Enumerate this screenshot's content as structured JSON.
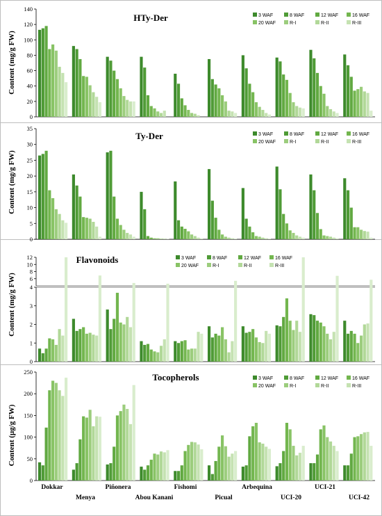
{
  "chart_data": [
    {
      "type": "bar",
      "title": "HTy-Der",
      "ylabel": "Content (mg/g FW)",
      "ylim": [
        0,
        140
      ],
      "yticks": [
        0,
        20,
        40,
        60,
        80,
        100,
        120,
        140
      ],
      "categories": [
        "Dokkar",
        "Menya",
        "Piñonera",
        "Abou Kanani",
        "Fishomi",
        "Picual",
        "Arbequina",
        "UCI-20",
        "UCI-21",
        "UCI-42"
      ],
      "series": [
        {
          "name": "3 WAF",
          "values": [
            113,
            92,
            78,
            78,
            56,
            75,
            80,
            77,
            87,
            81
          ]
        },
        {
          "name": "8 WAF",
          "values": [
            115,
            88,
            73,
            64,
            43,
            49,
            63,
            72,
            76,
            67
          ]
        },
        {
          "name": "12 WAF",
          "values": [
            118,
            75,
            60,
            28,
            24,
            42,
            43,
            55,
            57,
            52
          ]
        },
        {
          "name": "16 WAF",
          "values": [
            88,
            53,
            49,
            14,
            15,
            37,
            32,
            48,
            40,
            34
          ]
        },
        {
          "name": "20 WAF",
          "values": [
            94,
            52,
            37,
            11,
            9,
            28,
            19,
            31,
            30,
            36
          ]
        },
        {
          "name": "R-I",
          "values": [
            86,
            41,
            27,
            7,
            5,
            20,
            13,
            19,
            14,
            39
          ]
        },
        {
          "name": "R-II",
          "values": [
            65,
            32,
            22,
            5,
            4,
            8,
            9,
            14,
            10,
            33
          ]
        },
        {
          "name": "R-III",
          "values": [
            57,
            26,
            20,
            8,
            2,
            7,
            5,
            12,
            7,
            31
          ]
        },
        {
          "name": "",
          "values": [
            45,
            19,
            20,
            0,
            0,
            5,
            3,
            11,
            5,
            8
          ]
        }
      ],
      "legend": [
        "3 WAF",
        "8 WAF",
        "12 WAF",
        "16 WAF",
        "20 WAF",
        "R-I",
        "R-II",
        "R-III"
      ]
    },
    {
      "type": "bar",
      "title": "Ty-Der",
      "ylabel": "Content (mg/g FW)",
      "ylim": [
        0,
        35
      ],
      "yticks": [
        0,
        5,
        10,
        15,
        20,
        25,
        30,
        35
      ],
      "categories": [
        "Dokkar",
        "Menya",
        "Piñonera",
        "Abou Kanani",
        "Fishomi",
        "Picual",
        "Arbequina",
        "UCI-20",
        "UCI-21",
        "UCI-42"
      ],
      "series": [
        {
          "name": "3 WAF",
          "values": [
            26.5,
            20.5,
            27.5,
            15,
            18.3,
            22.2,
            16.2,
            23,
            20.5,
            19.3
          ]
        },
        {
          "name": "8 WAF",
          "values": [
            27,
            17,
            28,
            9.5,
            6,
            12.2,
            6.5,
            15.8,
            15.5,
            15.5
          ]
        },
        {
          "name": "12 WAF",
          "values": [
            28,
            13.5,
            13.5,
            1,
            4,
            6.8,
            4,
            8,
            8.3,
            10
          ]
        },
        {
          "name": "16 WAF",
          "values": [
            15.5,
            7,
            6.5,
            0.5,
            3.3,
            3,
            2.2,
            5,
            3.2,
            3.8
          ]
        },
        {
          "name": "20 WAF",
          "values": [
            13,
            6.8,
            4.5,
            0.3,
            2.5,
            1.5,
            1,
            2.8,
            1.2,
            3.8
          ]
        },
        {
          "name": "R-I",
          "values": [
            9.5,
            6.5,
            3,
            0.3,
            1.5,
            0.8,
            0.8,
            2,
            1,
            3
          ]
        },
        {
          "name": "R-II",
          "values": [
            8,
            5.5,
            2,
            0.2,
            1,
            0.5,
            0.5,
            1.2,
            0.8,
            2.6
          ]
        },
        {
          "name": "R-III",
          "values": [
            6,
            4,
            1.5,
            0.2,
            0.5,
            0.3,
            0.3,
            0.8,
            0.5,
            2.4
          ]
        },
        {
          "name": "",
          "values": [
            5.2,
            0.8,
            0.8,
            0.1,
            0.3,
            0.2,
            0.2,
            0.5,
            0.3,
            0.5
          ]
        }
      ],
      "legend": [
        "3 WAF",
        "8 WAF",
        "12 WAF",
        "16 WAF",
        "20 WAF",
        "R-I",
        "R-II",
        "R-III"
      ]
    },
    {
      "type": "bar",
      "title": "Flavonoids",
      "ylabel": "Content (mg/g FW)",
      "ylim": [
        0,
        12
      ],
      "yticks_lower": [
        0,
        1,
        2,
        3
      ],
      "yticks_upper": [
        4,
        6,
        8,
        10,
        12
      ],
      "axis_break": [
        4,
        4.5
      ],
      "categories": [
        "Dokkar",
        "Menya",
        "Piñonera",
        "Abou Kanani",
        "Fishomi",
        "Picual",
        "Arbequina",
        "UCI-20",
        "UCI-21",
        "UCI-42"
      ],
      "series": [
        {
          "name": "3 WAF",
          "values": [
            0.7,
            2.3,
            2.8,
            1.1,
            1.1,
            1.9,
            1.9,
            1.95,
            2.55,
            2.2
          ]
        },
        {
          "name": "8 WAF",
          "values": [
            0.45,
            1.65,
            1.75,
            0.9,
            1.0,
            1.3,
            1.55,
            1.9,
            2.5,
            1.5
          ]
        },
        {
          "name": "12 WAF",
          "values": [
            0.7,
            1.75,
            2.3,
            0.95,
            1.1,
            1.5,
            1.6,
            2.4,
            2.2,
            1.65
          ]
        },
        {
          "name": "16 WAF",
          "values": [
            1.25,
            1.85,
            3.7,
            0.65,
            1.15,
            1.4,
            1.75,
            3.4,
            2.1,
            1.5
          ]
        },
        {
          "name": "20 WAF",
          "values": [
            1.2,
            1.5,
            2.1,
            0.55,
            0.65,
            1.85,
            1.3,
            2.2,
            1.9,
            1.0
          ]
        },
        {
          "name": "R-I",
          "values": [
            0.9,
            1.55,
            2.0,
            0.5,
            0.7,
            1.2,
            1.05,
            1.7,
            1.5,
            1.4
          ]
        },
        {
          "name": "R-II",
          "values": [
            1.75,
            1.45,
            2.4,
            0.85,
            0.7,
            0.5,
            1.0,
            2.2,
            1.2,
            2.0
          ]
        },
        {
          "name": "R-III",
          "values": [
            1.4,
            1.4,
            1.85,
            1.2,
            1.6,
            1.1,
            1.65,
            1.6,
            1.6,
            2.05
          ]
        },
        {
          "name": "",
          "values": [
            12.3,
            6.9,
            4.8,
            4.6,
            1.5,
            5.4,
            1.5,
            12.2,
            6.8,
            5.7
          ]
        }
      ],
      "legend": [
        "3 WAF",
        "8 WAF",
        "12 WAF",
        "16 WAF",
        "20 WAF",
        "R-I",
        "R-II",
        "R-III"
      ]
    },
    {
      "type": "bar",
      "title": "Tocopherols",
      "ylabel": "Content (µg/g FW)",
      "ylim": [
        0,
        250
      ],
      "yticks": [
        0,
        50,
        100,
        150,
        200,
        250
      ],
      "categories": [
        "Dokkar",
        "Menya",
        "Piñonera",
        "Abou Kanani",
        "Fishomi",
        "Picual",
        "Arbequina",
        "UCI-20",
        "UCI-21",
        "UCI-42"
      ],
      "series": [
        {
          "name": "3 WAF",
          "values": [
            42,
            25,
            37,
            32,
            22,
            35,
            32,
            33,
            40,
            35
          ]
        },
        {
          "name": "8 WAF",
          "values": [
            35,
            40,
            40,
            25,
            22,
            15,
            35,
            40,
            40,
            35
          ]
        },
        {
          "name": "12 WAF",
          "values": [
            122,
            95,
            78,
            35,
            35,
            45,
            102,
            68,
            60,
            62
          ]
        },
        {
          "name": "16 WAF",
          "values": [
            208,
            148,
            150,
            48,
            68,
            78,
            125,
            133,
            118,
            100
          ]
        },
        {
          "name": "20 WAF",
          "values": [
            230,
            145,
            160,
            62,
            82,
            104,
            133,
            118,
            127,
            102
          ]
        },
        {
          "name": "R-I",
          "values": [
            225,
            163,
            175,
            60,
            89,
            79,
            88,
            80,
            100,
            107
          ]
        },
        {
          "name": "R-II",
          "values": [
            208,
            125,
            165,
            67,
            88,
            55,
            85,
            58,
            90,
            111
          ]
        },
        {
          "name": "R-III",
          "values": [
            195,
            148,
            130,
            65,
            83,
            62,
            78,
            64,
            80,
            112
          ]
        },
        {
          "name": "",
          "values": [
            237,
            147,
            220,
            70,
            72,
            68,
            73,
            80,
            68,
            80
          ]
        }
      ],
      "legend": [
        "3 WAF",
        "8 WAF",
        "12 WAF",
        "16 WAF",
        "20 WAF",
        "R-I",
        "R-II",
        "R-III"
      ]
    }
  ],
  "colors": [
    "#3d8a2c",
    "#4f9b36",
    "#61a941",
    "#73b64f",
    "#88c365",
    "#9ccd7d",
    "#b1d898",
    "#c5e2b2",
    "#d9edcd"
  ]
}
